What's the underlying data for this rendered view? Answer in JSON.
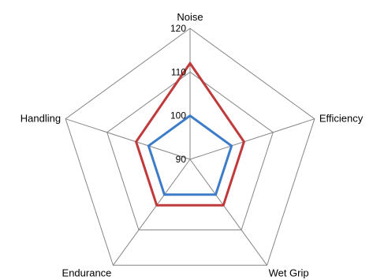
{
  "chart_data": {
    "type": "radar",
    "categories": [
      "Noise",
      "Efficiency",
      "Wet Grip",
      "Endurance",
      "Handling"
    ],
    "r_ticks": [
      90,
      100,
      110,
      120
    ],
    "rlim": [
      90,
      120
    ],
    "grid": true,
    "legend": "none",
    "series": [
      {
        "values": [
          100,
          100,
          100,
          100,
          100
        ],
        "color": "#3d7cc9"
      },
      {
        "values": [
          112,
          103,
          103,
          103,
          103
        ],
        "color": "#c0393b"
      }
    ],
    "colors": {
      "grid": "#868686"
    }
  }
}
